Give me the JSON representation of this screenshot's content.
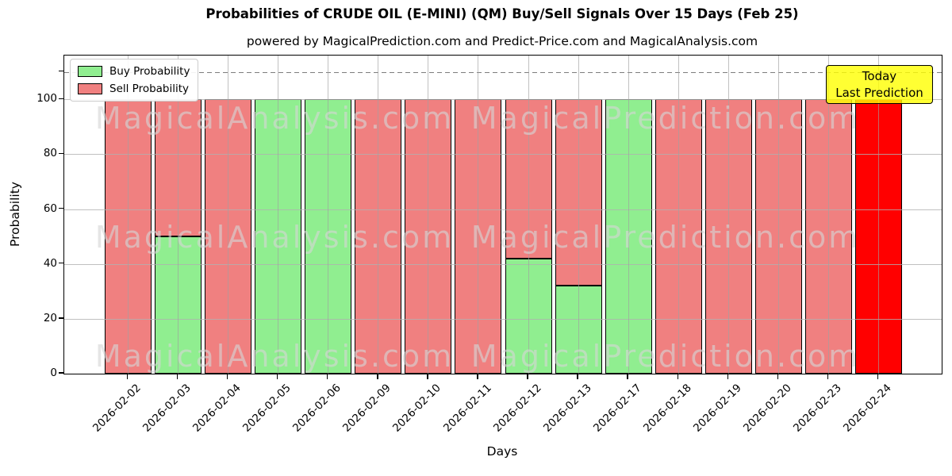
{
  "title": "Probabilities of CRUDE OIL (E-MINI) (QM) Buy/Sell Signals Over 15 Days (Feb 25)",
  "subtitle": "powered by MagicalPrediction.com and Predict-Price.com and MagicalAnalysis.com",
  "legend": {
    "items": [
      {
        "label": "Buy Probability",
        "color": "#90ee90"
      },
      {
        "label": "Sell Probability",
        "color": "#f08080"
      }
    ]
  },
  "annotation_box": {
    "line1": "Today",
    "line2": "Last Prediction",
    "bg_color": "#ffff00"
  },
  "watermarks": {
    "left_text": "MagicalAnalysis.com",
    "right_text": "MagicalPrediction.com"
  },
  "axes": {
    "xlabel": "Days",
    "ylabel": "Probability",
    "ytick_labels": [
      "0",
      "20",
      "40",
      "60",
      "80",
      "100"
    ],
    "grid": true
  },
  "chart_data": {
    "type": "bar",
    "stacked": true,
    "title": "Probabilities of CRUDE OIL (E-MINI) (QM) Buy/Sell Signals Over 15 Days (Feb 25)",
    "xlabel": "Days",
    "ylabel": "Probability",
    "ylim": [
      0,
      116
    ],
    "yticks": [
      0,
      20,
      40,
      60,
      80,
      100
    ],
    "threshold_dashed_line_y": 110,
    "legend_position": "upper left",
    "categories": [
      "2026-02-02",
      "2026-02-03",
      "2026-02-04",
      "2026-02-05",
      "2026-02-06",
      "2026-02-09",
      "2026-02-10",
      "2026-02-11",
      "2026-02-12",
      "2026-02-13",
      "2026-02-17",
      "2026-02-18",
      "2026-02-19",
      "2026-02-20",
      "2026-02-23",
      "2026-02-24"
    ],
    "series": [
      {
        "name": "Buy Probability",
        "color": "#90ee90",
        "values": [
          0,
          50,
          0,
          100,
          100,
          0,
          0,
          0,
          42,
          32,
          100,
          0,
          0,
          0,
          0,
          0
        ]
      },
      {
        "name": "Sell Probability",
        "color": "#f08080",
        "values": [
          100,
          50,
          100,
          0,
          0,
          100,
          100,
          100,
          58,
          68,
          0,
          100,
          100,
          100,
          100,
          100
        ]
      }
    ],
    "today_bar": {
      "category": "2026-02-24",
      "color": "#ff0000",
      "label": "Today Last Prediction"
    },
    "edge_color": "#000000",
    "grid_color": "#b0b0b0"
  }
}
